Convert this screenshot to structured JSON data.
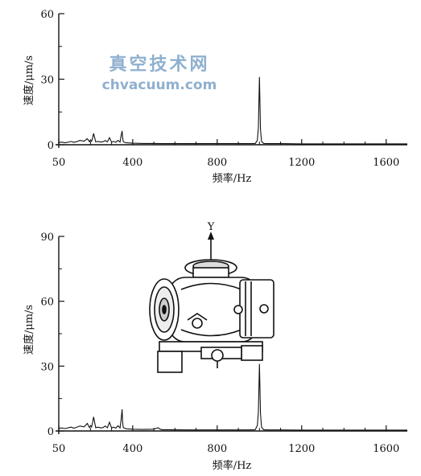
{
  "watermark": {
    "line1": "真空技术网",
    "line2": "chvacuum.com"
  },
  "chart_data": [
    {
      "type": "line",
      "xlabel": "频率/Hz",
      "ylabel": "速度/μm/s",
      "xlim": [
        50,
        1700
      ],
      "ylim": [
        0,
        60
      ],
      "xticks": [
        "50",
        "400",
        "800",
        "1200",
        "1600"
      ],
      "yticks": [
        "0",
        "30",
        "60"
      ],
      "grid": false,
      "series": [
        {
          "x": [
            50,
            60,
            80,
            100,
            110,
            120,
            135,
            150,
            170,
            185,
            195,
            200,
            205,
            210,
            215,
            225,
            235,
            250,
            260,
            270,
            280,
            290,
            300,
            310,
            320,
            330,
            340,
            345,
            350,
            352,
            355,
            360,
            370,
            400,
            450,
            500,
            550,
            600,
            650,
            700,
            750,
            800,
            850,
            900,
            950,
            980,
            990,
            995,
            1000,
            1005,
            1010,
            1020,
            1050,
            1100,
            1200,
            1300,
            1400,
            1500,
            1600,
            1700
          ],
          "y": [
            0.8,
            1.2,
            0.9,
            1.3,
            1.5,
            1.1,
            1.4,
            2.0,
            1.6,
            2.8,
            1.4,
            2.2,
            1.5,
            3.0,
            5.2,
            1.3,
            1.5,
            1.2,
            1.4,
            1.9,
            1.3,
            3.2,
            1.2,
            1.5,
            1.1,
            2.0,
            1.2,
            4.0,
            6.3,
            3.5,
            1.5,
            1.1,
            0.9,
            0.7,
            0.6,
            0.6,
            0.5,
            0.5,
            0.5,
            0.5,
            0.5,
            0.5,
            0.5,
            0.5,
            0.5,
            0.6,
            2.0,
            8.0,
            31.0,
            7.0,
            1.5,
            0.6,
            0.5,
            0.5,
            0.4,
            0.4,
            0.4,
            0.4,
            0.4,
            0.4
          ]
        }
      ]
    },
    {
      "type": "line",
      "xlabel": "频率/Hz",
      "ylabel": "速度/μm/s",
      "xlim": [
        50,
        1700
      ],
      "ylim": [
        0,
        90
      ],
      "xticks": [
        "50",
        "400",
        "800",
        "1200",
        "1600"
      ],
      "yticks": [
        "0",
        "30",
        "60",
        "90"
      ],
      "grid": false,
      "inset_image": "vacuum-pump-drawing-with-y-axis",
      "inset_label": "Y",
      "series": [
        {
          "x": [
            50,
            60,
            80,
            100,
            110,
            120,
            135,
            150,
            170,
            185,
            195,
            200,
            205,
            210,
            215,
            225,
            235,
            250,
            260,
            270,
            280,
            290,
            300,
            310,
            320,
            330,
            340,
            345,
            350,
            352,
            355,
            360,
            370,
            400,
            450,
            500,
            520,
            530,
            540,
            560,
            600,
            650,
            700,
            750,
            800,
            850,
            900,
            950,
            980,
            990,
            995,
            1000,
            1005,
            1010,
            1020,
            1050,
            1100,
            1200,
            1300,
            1400,
            1500,
            1600,
            1700
          ],
          "y": [
            1.0,
            1.4,
            1.1,
            1.6,
            1.8,
            1.3,
            1.7,
            2.3,
            1.9,
            3.5,
            1.6,
            2.5,
            1.8,
            3.8,
            6.5,
            1.5,
            1.8,
            1.4,
            1.6,
            2.3,
            1.5,
            4.0,
            1.4,
            1.8,
            1.3,
            2.4,
            1.4,
            5.0,
            10.0,
            4.5,
            1.8,
            1.3,
            1.0,
            0.8,
            0.7,
            0.8,
            1.5,
            0.8,
            0.6,
            0.6,
            0.6,
            0.5,
            0.5,
            0.5,
            0.5,
            0.5,
            0.5,
            0.5,
            0.6,
            2.5,
            9.0,
            31.0,
            8.0,
            1.8,
            0.6,
            0.5,
            0.5,
            0.4,
            0.4,
            0.4,
            0.4,
            0.4,
            0.4
          ]
        }
      ]
    }
  ]
}
